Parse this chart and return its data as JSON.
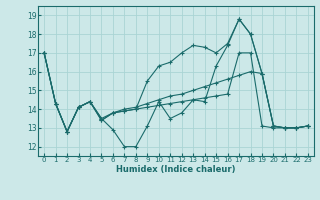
{
  "title": "",
  "xlabel": "Humidex (Indice chaleur)",
  "background_color": "#cce8e8",
  "grid_color": "#aad4d4",
  "line_color": "#1a6b6b",
  "xlim": [
    -0.5,
    23.5
  ],
  "ylim": [
    11.5,
    19.5
  ],
  "yticks": [
    12,
    13,
    14,
    15,
    16,
    17,
    18,
    19
  ],
  "xticks": [
    0,
    1,
    2,
    3,
    4,
    5,
    6,
    7,
    8,
    9,
    10,
    11,
    12,
    13,
    14,
    15,
    16,
    17,
    18,
    19,
    20,
    21,
    22,
    23
  ],
  "series": [
    [
      17.0,
      14.3,
      12.8,
      14.1,
      14.4,
      13.5,
      12.9,
      12.0,
      12.0,
      13.1,
      14.4,
      13.5,
      13.8,
      14.5,
      14.4,
      16.3,
      17.4,
      18.8,
      18.0,
      15.9,
      13.1,
      13.0,
      13.0,
      13.1
    ],
    [
      17.0,
      14.3,
      12.8,
      14.1,
      14.4,
      13.4,
      13.8,
      13.9,
      14.0,
      14.1,
      14.2,
      14.3,
      14.4,
      14.5,
      14.6,
      14.7,
      14.8,
      17.0,
      17.0,
      13.1,
      13.0,
      13.0,
      13.0,
      13.1
    ],
    [
      17.0,
      14.3,
      12.8,
      14.1,
      14.4,
      13.4,
      13.8,
      13.9,
      14.0,
      15.5,
      16.3,
      16.5,
      17.0,
      17.4,
      17.3,
      17.0,
      17.5,
      18.8,
      18.0,
      15.9,
      13.1,
      13.0,
      13.0,
      13.1
    ],
    [
      17.0,
      14.3,
      12.8,
      14.1,
      14.4,
      13.5,
      13.8,
      14.0,
      14.1,
      14.3,
      14.5,
      14.7,
      14.8,
      15.0,
      15.2,
      15.4,
      15.6,
      15.8,
      16.0,
      15.9,
      13.1,
      13.0,
      13.0,
      13.1
    ]
  ]
}
